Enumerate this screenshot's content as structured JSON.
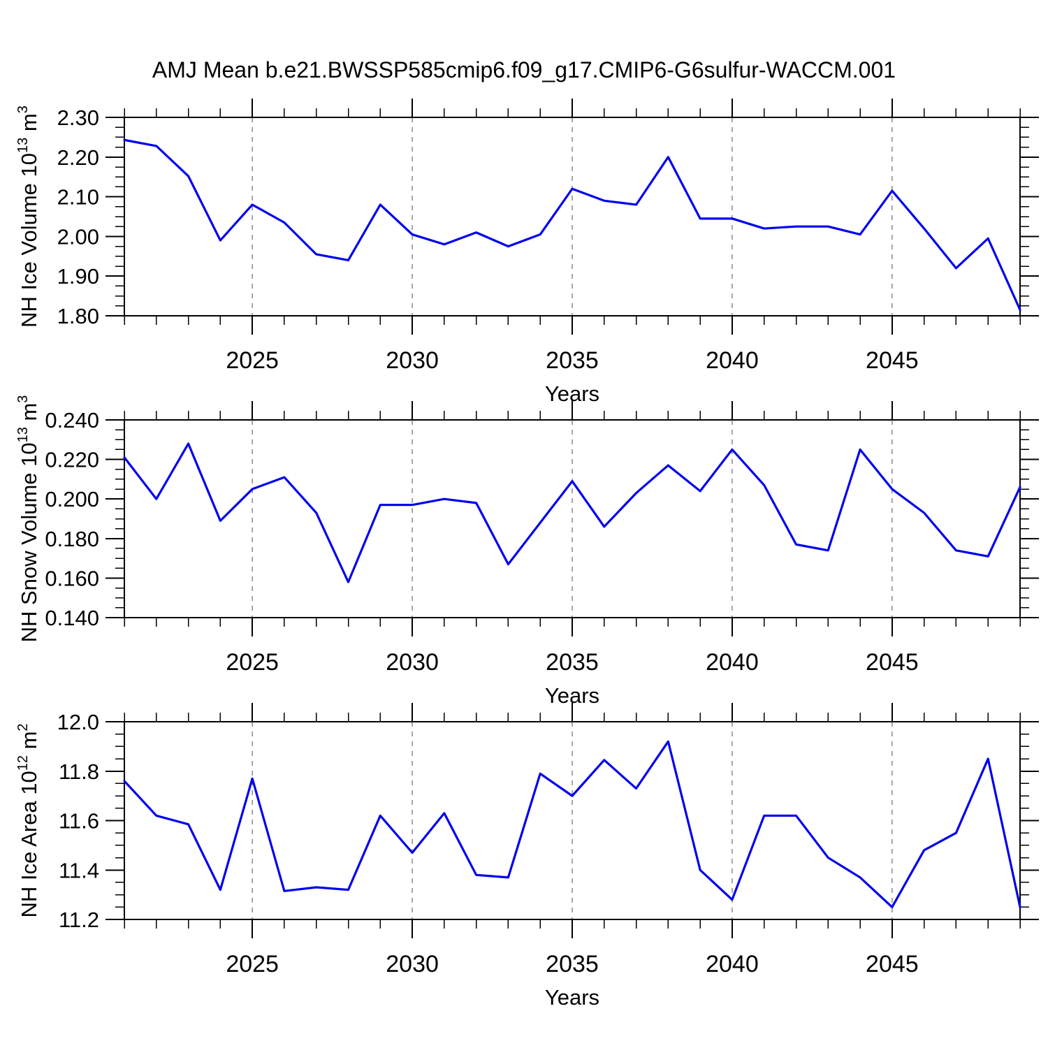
{
  "title": "AMJ Mean b.e21.BWSSP585cmip6.f09_g17.CMIP6-G6sulfur-WACCM.001",
  "colors": {
    "line": "#0000ee",
    "grid": "#808080",
    "axis": "#000000",
    "text": "#000000",
    "background": "#ffffff"
  },
  "chart_data": [
    {
      "type": "line",
      "name": "nh-ice-volume",
      "ylabel_text": "NH Ice Volume 10^13 m^3",
      "ylabel_parts": [
        {
          "t": "NH Ice Volume 10"
        },
        {
          "t": "13",
          "sup": true
        },
        {
          "t": " m"
        },
        {
          "t": "3",
          "sup": true
        }
      ],
      "xlabel": "Years",
      "x": [
        2021,
        2022,
        2023,
        2024,
        2025,
        2026,
        2027,
        2028,
        2029,
        2030,
        2031,
        2032,
        2033,
        2034,
        2035,
        2036,
        2037,
        2038,
        2039,
        2040,
        2041,
        2042,
        2043,
        2044,
        2045,
        2046,
        2047,
        2048,
        2049
      ],
      "values": [
        2.243,
        2.228,
        2.152,
        1.99,
        2.08,
        2.035,
        1.955,
        1.94,
        2.08,
        2.005,
        1.98,
        2.01,
        1.975,
        2.005,
        2.12,
        2.09,
        2.08,
        2.2,
        2.045,
        2.045,
        2.02,
        2.025,
        2.025,
        2.005,
        2.115,
        2.02,
        1.92,
        1.995,
        1.815
      ],
      "xlim": [
        2021,
        2049
      ],
      "ylim": [
        1.8,
        2.3
      ],
      "xticks": [
        2025,
        2030,
        2035,
        2040,
        2045
      ],
      "xtick_labels": [
        "2025",
        "2030",
        "2035",
        "2040",
        "2045"
      ],
      "x_minor_step": 1,
      "ytick_vals": [
        1.8,
        1.9,
        2.0,
        2.1,
        2.2,
        2.3
      ],
      "ytick_labels": [
        "1.80",
        "1.90",
        "2.00",
        "2.10",
        "2.20",
        "2.30"
      ],
      "y_minor_step": 0.025,
      "grid": "vertical-dashed-at-major-x",
      "legend": null
    },
    {
      "type": "line",
      "name": "nh-snow-volume",
      "ylabel_text": "NH Snow Volume 10^13 m^3",
      "ylabel_parts": [
        {
          "t": "NH Snow Volume 10"
        },
        {
          "t": "13",
          "sup": true
        },
        {
          "t": " m"
        },
        {
          "t": "3",
          "sup": true
        }
      ],
      "xlabel": "Years",
      "x": [
        2021,
        2022,
        2023,
        2024,
        2025,
        2026,
        2027,
        2028,
        2029,
        2030,
        2031,
        2032,
        2033,
        2034,
        2035,
        2036,
        2037,
        2038,
        2039,
        2040,
        2041,
        2042,
        2043,
        2044,
        2045,
        2046,
        2047,
        2048,
        2049
      ],
      "values": [
        0.221,
        0.2,
        0.228,
        0.189,
        0.205,
        0.211,
        0.193,
        0.158,
        0.197,
        0.197,
        0.2,
        0.198,
        0.167,
        0.188,
        0.209,
        0.186,
        0.203,
        0.217,
        0.204,
        0.225,
        0.207,
        0.177,
        0.174,
        0.225,
        0.205,
        0.193,
        0.174,
        0.171,
        0.206
      ],
      "xlim": [
        2021,
        2049
      ],
      "ylim": [
        0.14,
        0.24
      ],
      "xticks": [
        2025,
        2030,
        2035,
        2040,
        2045
      ],
      "xtick_labels": [
        "2025",
        "2030",
        "2035",
        "2040",
        "2045"
      ],
      "x_minor_step": 1,
      "ytick_vals": [
        0.14,
        0.16,
        0.18,
        0.2,
        0.22,
        0.24
      ],
      "ytick_labels": [
        "0.140",
        "0.160",
        "0.180",
        "0.200",
        "0.220",
        "0.240"
      ],
      "y_minor_step": 0.005,
      "grid": "vertical-dashed-at-major-x",
      "legend": null
    },
    {
      "type": "line",
      "name": "nh-ice-area",
      "ylabel_text": "NH Ice Area 10^12 m^2",
      "ylabel_parts": [
        {
          "t": "NH Ice Area 10"
        },
        {
          "t": "12",
          "sup": true
        },
        {
          "t": " m"
        },
        {
          "t": "2",
          "sup": true
        }
      ],
      "xlabel": "Years",
      "x": [
        2021,
        2022,
        2023,
        2024,
        2025,
        2026,
        2027,
        2028,
        2029,
        2030,
        2031,
        2032,
        2033,
        2034,
        2035,
        2036,
        2037,
        2038,
        2039,
        2040,
        2041,
        2042,
        2043,
        2044,
        2045,
        2046,
        2047,
        2048,
        2049
      ],
      "values": [
        11.76,
        11.62,
        11.585,
        11.32,
        11.77,
        11.315,
        11.33,
        11.32,
        11.62,
        11.47,
        11.63,
        11.38,
        11.37,
        11.79,
        11.7,
        11.845,
        11.73,
        11.92,
        11.4,
        11.28,
        11.62,
        11.62,
        11.45,
        11.37,
        11.25,
        11.48,
        11.55,
        11.85,
        11.25
      ],
      "xlim": [
        2021,
        2049
      ],
      "ylim": [
        11.2,
        12.0
      ],
      "xticks": [
        2025,
        2030,
        2035,
        2040,
        2045
      ],
      "xtick_labels": [
        "2025",
        "2030",
        "2035",
        "2040",
        "2045"
      ],
      "x_minor_step": 1,
      "ytick_vals": [
        11.2,
        11.4,
        11.6,
        11.8,
        12.0
      ],
      "ytick_labels": [
        "11.2",
        "11.4",
        "11.6",
        "11.8",
        "12.0"
      ],
      "y_minor_step": 0.05,
      "grid": "vertical-dashed-at-major-x",
      "legend": null
    }
  ]
}
